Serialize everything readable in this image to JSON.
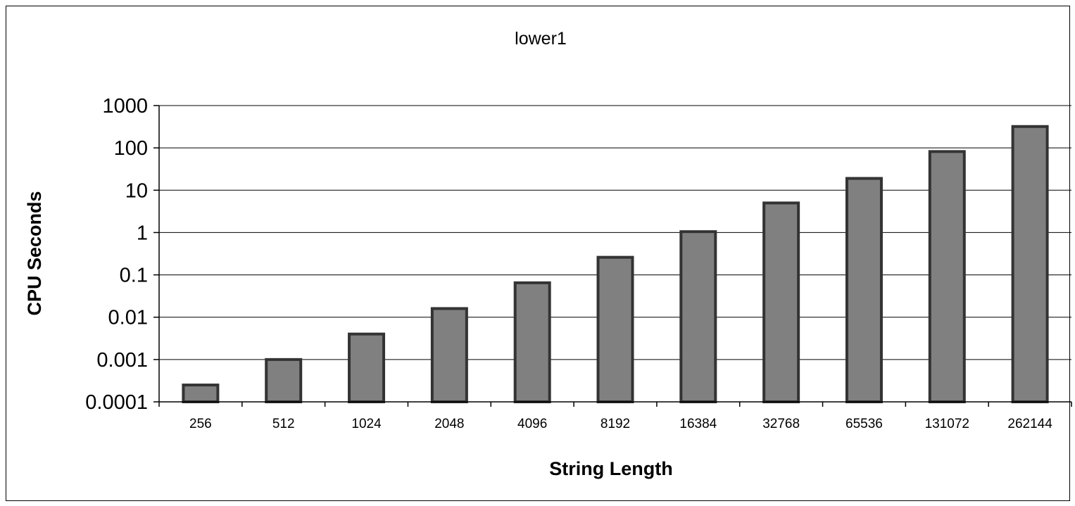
{
  "chart_data": {
    "type": "bar",
    "title": "lower1",
    "xlabel": "String Length",
    "ylabel": "CPU Seconds",
    "y_scale": "log",
    "ylim": [
      0.0001,
      1000
    ],
    "y_ticks": [
      "1000",
      "100",
      "10",
      "1",
      "0.1",
      "0.01",
      "0.001",
      "0.0001"
    ],
    "grid": true,
    "legend": "none",
    "categories": [
      "256",
      "512",
      "1024",
      "2048",
      "4096",
      "8192",
      "16384",
      "32768",
      "65536",
      "131072",
      "262144"
    ],
    "values": [
      0.00025,
      0.001,
      0.004,
      0.016,
      0.065,
      0.26,
      1.05,
      5,
      19,
      82,
      320
    ],
    "bar_color": "#808080",
    "bar_edge_color": "#333333"
  }
}
